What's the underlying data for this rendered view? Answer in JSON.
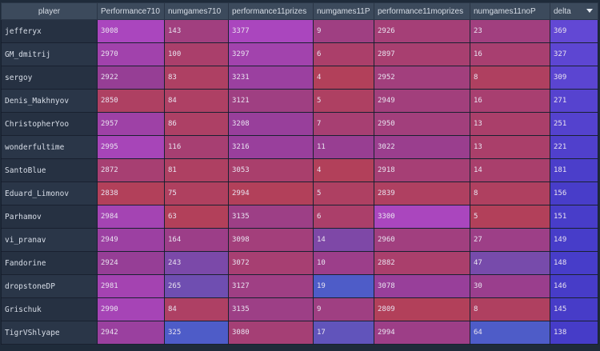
{
  "table": {
    "columns": [
      {
        "key": "player",
        "label": "player"
      },
      {
        "key": "performance710",
        "label": "Performance710"
      },
      {
        "key": "numgames710",
        "label": "numgames710"
      },
      {
        "key": "performance11prizes",
        "label": "performance11prizes"
      },
      {
        "key": "numgames11p",
        "label": "numgames11P"
      },
      {
        "key": "performance11moprizes",
        "label": "performance11moprizes"
      },
      {
        "key": "numgames11nop",
        "label": "numgames11noP"
      },
      {
        "key": "delta",
        "label": "delta"
      }
    ],
    "sort": {
      "column": "delta",
      "direction": "descending",
      "icon": "sort-desc-icon"
    },
    "rows": [
      {
        "player": "jefferyx",
        "performance710": "3008",
        "numgames710": "143",
        "performance11prizes": "3377",
        "numgames11p": "9",
        "performance11moprizes": "2926",
        "numgames11nop": "23",
        "delta": "369"
      },
      {
        "player": "GM_dmitrij",
        "performance710": "2970",
        "numgames710": "100",
        "performance11prizes": "3297",
        "numgames11p": "6",
        "performance11moprizes": "2897",
        "numgames11nop": "16",
        "delta": "327"
      },
      {
        "player": "sergoy",
        "performance710": "2922",
        "numgames710": "83",
        "performance11prizes": "3231",
        "numgames11p": "4",
        "performance11moprizes": "2952",
        "numgames11nop": "8",
        "delta": "309"
      },
      {
        "player": "Denis_Makhnyov",
        "performance710": "2850",
        "numgames710": "84",
        "performance11prizes": "3121",
        "numgames11p": "5",
        "performance11moprizes": "2949",
        "numgames11nop": "16",
        "delta": "271"
      },
      {
        "player": "ChristopherYoo",
        "performance710": "2957",
        "numgames710": "86",
        "performance11prizes": "3208",
        "numgames11p": "7",
        "performance11moprizes": "2950",
        "numgames11nop": "13",
        "delta": "251"
      },
      {
        "player": "wonderfultime",
        "performance710": "2995",
        "numgames710": "116",
        "performance11prizes": "3216",
        "numgames11p": "11",
        "performance11moprizes": "3022",
        "numgames11nop": "13",
        "delta": "221"
      },
      {
        "player": "SantoBlue",
        "performance710": "2872",
        "numgames710": "81",
        "performance11prizes": "3053",
        "numgames11p": "4",
        "performance11moprizes": "2918",
        "numgames11nop": "14",
        "delta": "181"
      },
      {
        "player": "Eduard_Limonov",
        "performance710": "2838",
        "numgames710": "75",
        "performance11prizes": "2994",
        "numgames11p": "5",
        "performance11moprizes": "2839",
        "numgames11nop": "8",
        "delta": "156"
      },
      {
        "player": "Parhamov",
        "performance710": "2984",
        "numgames710": "63",
        "performance11prizes": "3135",
        "numgames11p": "6",
        "performance11moprizes": "3300",
        "numgames11nop": "5",
        "delta": "151"
      },
      {
        "player": "vi_pranav",
        "performance710": "2949",
        "numgames710": "164",
        "performance11prizes": "3098",
        "numgames11p": "14",
        "performance11moprizes": "2960",
        "numgames11nop": "27",
        "delta": "149"
      },
      {
        "player": "Fandorine",
        "performance710": "2924",
        "numgames710": "243",
        "performance11prizes": "3072",
        "numgames11p": "10",
        "performance11moprizes": "2882",
        "numgames11nop": "47",
        "delta": "148"
      },
      {
        "player": "dropstoneDP",
        "performance710": "2981",
        "numgames710": "265",
        "performance11prizes": "3127",
        "numgames11p": "19",
        "performance11moprizes": "3078",
        "numgames11nop": "30",
        "delta": "146"
      },
      {
        "player": "Grischuk",
        "performance710": "2990",
        "numgames710": "84",
        "performance11prizes": "3135",
        "numgames11p": "9",
        "performance11moprizes": "2809",
        "numgames11nop": "8",
        "delta": "145"
      },
      {
        "player": "TigrVShlyape",
        "performance710": "2942",
        "numgames710": "325",
        "performance11prizes": "3080",
        "numgames11p": "17",
        "performance11moprizes": "2994",
        "numgames11nop": "64",
        "delta": "138"
      }
    ]
  }
}
